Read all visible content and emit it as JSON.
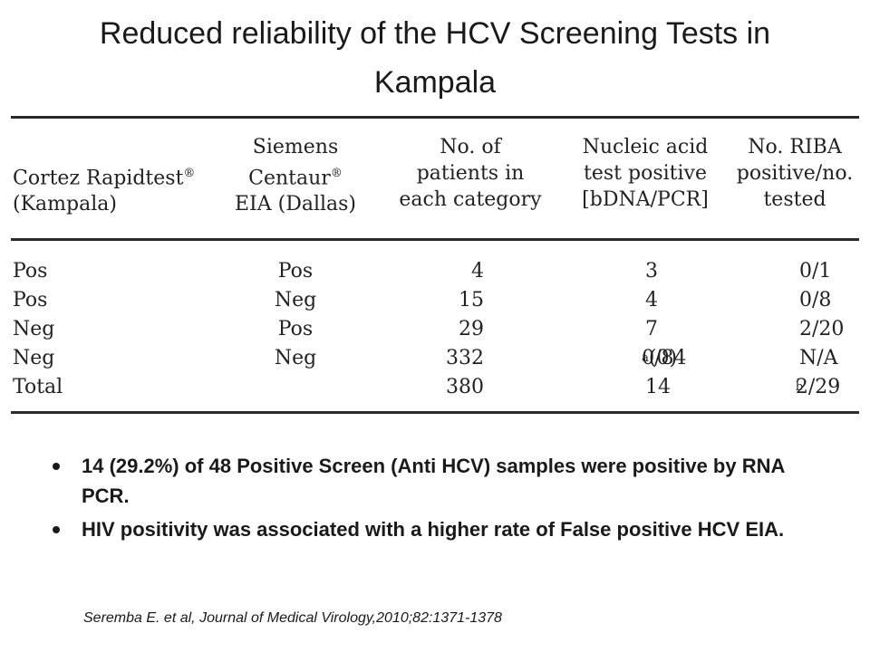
{
  "title": {
    "line1": "Reduced reliability of the HCV Screening Tests in",
    "line2": "Kampala"
  },
  "table": {
    "headers": [
      {
        "lines": [
          "Cortez Rapidtest",
          "(Kampala)"
        ],
        "sup": "®"
      },
      {
        "lines": [
          "Siemens",
          "Centaur",
          "EIA (Dallas)"
        ],
        "sup": "®"
      },
      {
        "lines": [
          "No. of",
          "patients in",
          "each category"
        ]
      },
      {
        "lines": [
          "Nucleic acid",
          "test positive",
          "[bDNA/PCR]"
        ]
      },
      {
        "lines": [
          "No. RIBA",
          "positive/no.",
          "tested"
        ]
      }
    ],
    "rows": [
      {
        "cortez": "Pos",
        "siemens": "Pos",
        "patients": "4",
        "nucleic": "3",
        "nucleic_sup": "",
        "nucleic_tail": "",
        "riba": "0/1",
        "riba_sup": ""
      },
      {
        "cortez": "Pos",
        "siemens": "Neg",
        "patients": "15",
        "nucleic": "4",
        "nucleic_sup": "",
        "nucleic_tail": "",
        "riba": "0/8",
        "riba_sup": ""
      },
      {
        "cortez": "Neg",
        "siemens": "Pos",
        "patients": "29",
        "nucleic": "7",
        "nucleic_sup": "",
        "nucleic_tail": "",
        "riba": "2/20",
        "riba_sup": ""
      },
      {
        "cortez": "Neg",
        "siemens": "Neg",
        "patients": "332",
        "nucleic": "0/84",
        "nucleic_sup": "a",
        "nucleic_tail": " (0)",
        "riba": "N/A",
        "riba_sup": ""
      },
      {
        "cortez": "Total",
        "siemens": "",
        "patients": "380",
        "nucleic": "14",
        "nucleic_sup": "",
        "nucleic_tail": "",
        "riba": "2/29",
        "riba_sup": "b"
      }
    ]
  },
  "bullets": [
    "14 (29.2%) of 48 Positive Screen (Anti HCV) samples were positive by RNA PCR.",
    "HIV positivity was associated with a higher rate of False positive HCV EIA."
  ],
  "citation": "Seremba E. et al, Journal of Medical Virology,2010;82:1371-1378"
}
